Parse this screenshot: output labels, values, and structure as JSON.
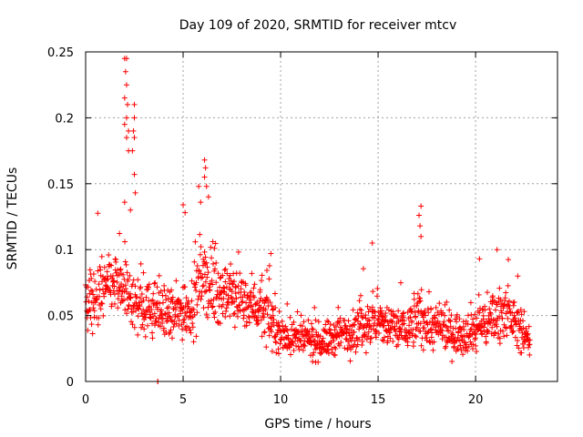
{
  "chart_data": {
    "type": "scatter",
    "title": "Day 109 of 2020, SRMTID for receiver mtcv",
    "xlabel": "GPS time / hours",
    "ylabel": "SRMTID / TECUs",
    "xlim": [
      0,
      24.2
    ],
    "ylim": [
      0,
      0.25
    ],
    "x_ticks": [
      0,
      5,
      10,
      15,
      20
    ],
    "x_tick_labels": [
      "0",
      "5",
      "10",
      "15",
      "20"
    ],
    "y_ticks": [
      0,
      0.05,
      0.1,
      0.15,
      0.2,
      0.25
    ],
    "y_tick_labels": [
      "0",
      "0.05",
      "0.1",
      "0.15",
      "0.2",
      "0.25"
    ],
    "grid": true,
    "marker": "plus",
    "color": "#ff0000",
    "profile": {
      "x": [
        0,
        0.5,
        1,
        1.5,
        2,
        2.5,
        3,
        3.5,
        4,
        4.5,
        5,
        5.5,
        6,
        6.5,
        7,
        7.5,
        8,
        8.5,
        9,
        9.5,
        10,
        10.5,
        11,
        11.5,
        12,
        12.5,
        13,
        13.5,
        14,
        14.5,
        15,
        15.5,
        16,
        16.5,
        17,
        17.5,
        18,
        18.5,
        19,
        19.5,
        20,
        20.5,
        21,
        21.5,
        22,
        22.5,
        22.8
      ],
      "median": [
        0.058,
        0.062,
        0.07,
        0.075,
        0.068,
        0.06,
        0.056,
        0.055,
        0.052,
        0.05,
        0.055,
        0.058,
        0.08,
        0.07,
        0.066,
        0.065,
        0.063,
        0.06,
        0.055,
        0.045,
        0.035,
        0.034,
        0.033,
        0.031,
        0.03,
        0.032,
        0.035,
        0.038,
        0.042,
        0.045,
        0.044,
        0.042,
        0.04,
        0.04,
        0.048,
        0.045,
        0.04,
        0.038,
        0.036,
        0.038,
        0.04,
        0.045,
        0.05,
        0.055,
        0.045,
        0.035,
        0.033
      ],
      "spread": [
        0.03,
        0.03,
        0.028,
        0.028,
        0.03,
        0.028,
        0.025,
        0.025,
        0.024,
        0.024,
        0.028,
        0.03,
        0.032,
        0.03,
        0.028,
        0.028,
        0.026,
        0.025,
        0.025,
        0.022,
        0.018,
        0.018,
        0.018,
        0.017,
        0.017,
        0.018,
        0.02,
        0.022,
        0.022,
        0.024,
        0.023,
        0.022,
        0.022,
        0.022,
        0.026,
        0.025,
        0.022,
        0.02,
        0.02,
        0.02,
        0.022,
        0.022,
        0.024,
        0.024,
        0.022,
        0.018,
        0.016
      ]
    },
    "n_points": 1500,
    "highlighted_points": [
      {
        "x": 2.0,
        "y": 0.245
      },
      {
        "x": 2.1,
        "y": 0.245
      },
      {
        "x": 2.05,
        "y": 0.235
      },
      {
        "x": 2.1,
        "y": 0.225
      },
      {
        "x": 2.0,
        "y": 0.215
      },
      {
        "x": 2.15,
        "y": 0.21
      },
      {
        "x": 2.1,
        "y": 0.2
      },
      {
        "x": 2.0,
        "y": 0.195
      },
      {
        "x": 2.2,
        "y": 0.19
      },
      {
        "x": 2.1,
        "y": 0.185
      },
      {
        "x": 2.2,
        "y": 0.175
      },
      {
        "x": 2.5,
        "y": 0.21
      },
      {
        "x": 2.5,
        "y": 0.2
      },
      {
        "x": 2.45,
        "y": 0.19
      },
      {
        "x": 2.5,
        "y": 0.185
      },
      {
        "x": 2.4,
        "y": 0.175
      },
      {
        "x": 2.5,
        "y": 0.157
      },
      {
        "x": 2.55,
        "y": 0.143
      },
      {
        "x": 2.0,
        "y": 0.136
      },
      {
        "x": 2.3,
        "y": 0.13
      },
      {
        "x": 6.1,
        "y": 0.168
      },
      {
        "x": 6.15,
        "y": 0.162
      },
      {
        "x": 6.1,
        "y": 0.155
      },
      {
        "x": 6.2,
        "y": 0.148
      },
      {
        "x": 6.3,
        "y": 0.14
      },
      {
        "x": 5.8,
        "y": 0.148
      },
      {
        "x": 5.9,
        "y": 0.136
      },
      {
        "x": 5.0,
        "y": 0.134
      },
      {
        "x": 5.1,
        "y": 0.128
      },
      {
        "x": 14.7,
        "y": 0.105
      },
      {
        "x": 17.2,
        "y": 0.133
      },
      {
        "x": 17.1,
        "y": 0.126
      },
      {
        "x": 17.15,
        "y": 0.118
      },
      {
        "x": 17.2,
        "y": 0.11
      },
      {
        "x": 21.1,
        "y": 0.1
      },
      {
        "x": 20.2,
        "y": 0.093
      },
      {
        "x": 9.5,
        "y": 0.097
      },
      {
        "x": 3.7,
        "y": 0.0
      },
      {
        "x": 3.7,
        "y": 0.0
      }
    ]
  }
}
